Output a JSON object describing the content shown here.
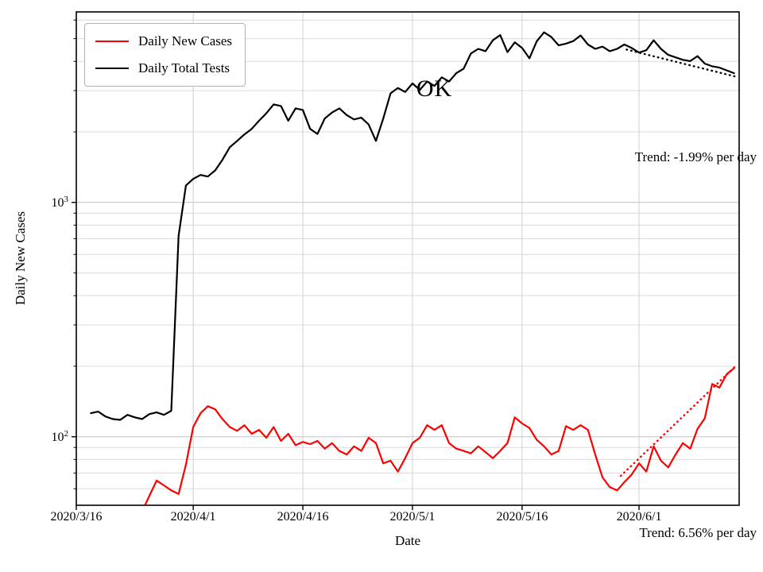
{
  "figure": {
    "background": "#ffffff"
  },
  "chart_data": {
    "type": "line",
    "title": "",
    "xlabel": "Date",
    "ylabel": "Daily New Cases",
    "y_scale": "log",
    "xlim_days": [
      0,
      90.7
    ],
    "ylim": [
      51,
      6500
    ],
    "grid": true,
    "legend_position": "upper-left",
    "x_ticks": [
      {
        "day": 0,
        "label": "2020/3/16"
      },
      {
        "day": 16,
        "label": "2020/4/1"
      },
      {
        "day": 31,
        "label": "2020/4/16"
      },
      {
        "day": 46,
        "label": "2020/5/1"
      },
      {
        "day": 61,
        "label": "2020/5/16"
      },
      {
        "day": 77,
        "label": "2020/6/1"
      }
    ],
    "y_ticks": [
      {
        "value": 100,
        "label": "10^2"
      },
      {
        "value": 1000,
        "label": "10^3"
      }
    ],
    "y_minor_grid": [
      60,
      70,
      80,
      90,
      200,
      300,
      400,
      500,
      600,
      700,
      800,
      900,
      2000,
      3000,
      4000,
      5000,
      6000
    ],
    "series": [
      {
        "name": "Daily New Cases",
        "color": "#ff0000",
        "points": [
          [
            9,
            48
          ],
          [
            10,
            56
          ],
          [
            11,
            65
          ],
          [
            12,
            62
          ],
          [
            13,
            59
          ],
          [
            14,
            57
          ],
          [
            15,
            76
          ],
          [
            16,
            110
          ],
          [
            17,
            126
          ],
          [
            18,
            135
          ],
          [
            19,
            131
          ],
          [
            20,
            119
          ],
          [
            21,
            110
          ],
          [
            22,
            106
          ],
          [
            23,
            112
          ],
          [
            24,
            103
          ],
          [
            25,
            107
          ],
          [
            26,
            99
          ],
          [
            27,
            110
          ],
          [
            28,
            96
          ],
          [
            29,
            103
          ],
          [
            30,
            92
          ],
          [
            31,
            95
          ],
          [
            32,
            93
          ],
          [
            33,
            96
          ],
          [
            34,
            89
          ],
          [
            35,
            94
          ],
          [
            36,
            87
          ],
          [
            37,
            84
          ],
          [
            38,
            91
          ],
          [
            39,
            87
          ],
          [
            40,
            99
          ],
          [
            41,
            94
          ],
          [
            42,
            77
          ],
          [
            43,
            79
          ],
          [
            44,
            71
          ],
          [
            45,
            81
          ],
          [
            46,
            94
          ],
          [
            47,
            99
          ],
          [
            48,
            112
          ],
          [
            49,
            107
          ],
          [
            50,
            112
          ],
          [
            51,
            94
          ],
          [
            52,
            89
          ],
          [
            53,
            87
          ],
          [
            54,
            85
          ],
          [
            55,
            91
          ],
          [
            56,
            86
          ],
          [
            57,
            81
          ],
          [
            58,
            87
          ],
          [
            59,
            94
          ],
          [
            60,
            121
          ],
          [
            61,
            114
          ],
          [
            62,
            109
          ],
          [
            63,
            97
          ],
          [
            64,
            91
          ],
          [
            65,
            84
          ],
          [
            66,
            87
          ],
          [
            67,
            111
          ],
          [
            68,
            107
          ],
          [
            69,
            112
          ],
          [
            70,
            107
          ],
          [
            71,
            84
          ],
          [
            72,
            67
          ],
          [
            73,
            61
          ],
          [
            74,
            59
          ],
          [
            75,
            64
          ],
          [
            76,
            69
          ],
          [
            77,
            77
          ],
          [
            78,
            71
          ],
          [
            79,
            91
          ],
          [
            80,
            79
          ],
          [
            81,
            74
          ],
          [
            82,
            84
          ],
          [
            83,
            94
          ],
          [
            84,
            89
          ],
          [
            85,
            108
          ],
          [
            86,
            120
          ],
          [
            87,
            168
          ],
          [
            88,
            162
          ],
          [
            89,
            185
          ],
          [
            90,
            196
          ]
        ]
      },
      {
        "name": "Daily Total Tests",
        "color": "#000000",
        "points": [
          [
            2,
            126
          ],
          [
            3,
            128
          ],
          [
            4,
            122
          ],
          [
            5,
            119
          ],
          [
            6,
            118
          ],
          [
            7,
            124
          ],
          [
            8,
            121
          ],
          [
            9,
            119
          ],
          [
            10,
            125
          ],
          [
            11,
            127
          ],
          [
            12,
            124
          ],
          [
            13,
            129
          ],
          [
            14,
            720
          ],
          [
            15,
            1180
          ],
          [
            16,
            1260
          ],
          [
            17,
            1310
          ],
          [
            18,
            1290
          ],
          [
            19,
            1370
          ],
          [
            20,
            1520
          ],
          [
            21,
            1720
          ],
          [
            22,
            1830
          ],
          [
            23,
            1950
          ],
          [
            24,
            2060
          ],
          [
            25,
            2230
          ],
          [
            26,
            2400
          ],
          [
            27,
            2620
          ],
          [
            28,
            2580
          ],
          [
            29,
            2230
          ],
          [
            30,
            2520
          ],
          [
            31,
            2480
          ],
          [
            32,
            2060
          ],
          [
            33,
            1960
          ],
          [
            34,
            2280
          ],
          [
            35,
            2420
          ],
          [
            36,
            2520
          ],
          [
            37,
            2360
          ],
          [
            38,
            2260
          ],
          [
            39,
            2300
          ],
          [
            40,
            2150
          ],
          [
            41,
            1830
          ],
          [
            42,
            2280
          ],
          [
            43,
            2920
          ],
          [
            44,
            3080
          ],
          [
            45,
            2960
          ],
          [
            46,
            3220
          ],
          [
            47,
            3020
          ],
          [
            48,
            3280
          ],
          [
            49,
            3140
          ],
          [
            50,
            3420
          ],
          [
            51,
            3280
          ],
          [
            52,
            3560
          ],
          [
            53,
            3720
          ],
          [
            54,
            4320
          ],
          [
            55,
            4520
          ],
          [
            56,
            4420
          ],
          [
            57,
            4920
          ],
          [
            58,
            5180
          ],
          [
            59,
            4380
          ],
          [
            60,
            4820
          ],
          [
            61,
            4560
          ],
          [
            62,
            4120
          ],
          [
            63,
            4870
          ],
          [
            64,
            5320
          ],
          [
            65,
            5080
          ],
          [
            66,
            4680
          ],
          [
            67,
            4760
          ],
          [
            68,
            4880
          ],
          [
            69,
            5160
          ],
          [
            70,
            4720
          ],
          [
            71,
            4520
          ],
          [
            72,
            4620
          ],
          [
            73,
            4420
          ],
          [
            74,
            4520
          ],
          [
            75,
            4720
          ],
          [
            76,
            4560
          ],
          [
            77,
            4360
          ],
          [
            78,
            4460
          ],
          [
            79,
            4920
          ],
          [
            80,
            4520
          ],
          [
            81,
            4260
          ],
          [
            82,
            4160
          ],
          [
            83,
            4060
          ],
          [
            84,
            4010
          ],
          [
            85,
            4210
          ],
          [
            86,
            3910
          ],
          [
            87,
            3810
          ],
          [
            88,
            3760
          ],
          [
            89,
            3660
          ],
          [
            90,
            3560
          ]
        ]
      }
    ],
    "trend_lines": [
      {
        "name": "tests-trend",
        "label": "Trend: -1.99% per day",
        "rate_pct_per_day": -1.99,
        "color": "#000000",
        "points": [
          [
            75.3,
            4490
          ],
          [
            90.6,
            3420
          ]
        ]
      },
      {
        "name": "cases-trend",
        "label": "Trend: 6.56% per day",
        "rate_pct_per_day": 6.56,
        "color": "#ff0000",
        "points": [
          [
            74.5,
            68
          ],
          [
            90.2,
            200
          ]
        ]
      }
    ],
    "annotation": {
      "text": "OK",
      "day": 49,
      "value": 3050
    }
  }
}
